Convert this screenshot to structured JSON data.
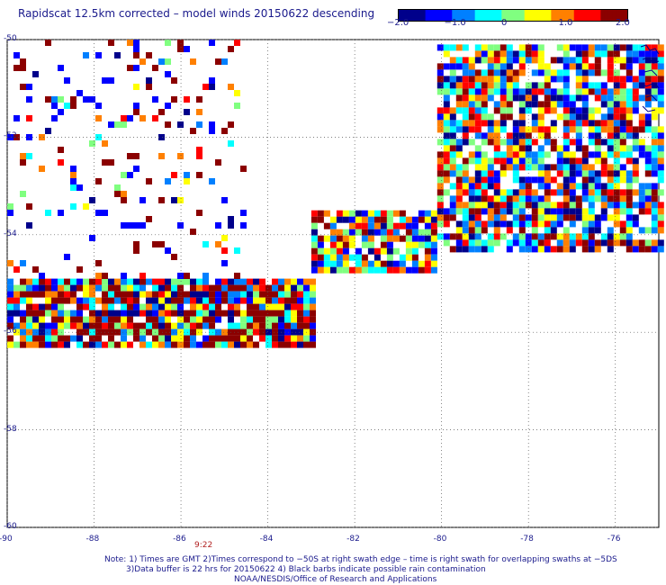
{
  "title": "Rapidscat 12.5km corrected – model winds 20150622 descending",
  "colorbar": {
    "min": -2.0,
    "max": 2.0,
    "ticks": [
      {
        "value": -2.0,
        "label": "−2.0"
      },
      {
        "value": -1.0,
        "label": "−1.0"
      },
      {
        "value": 0,
        "label": "0"
      },
      {
        "value": 1.0,
        "label": "1.0"
      },
      {
        "value": 2.0,
        "label": "2.0"
      }
    ],
    "colors": [
      "#00008b",
      "#0000ff",
      "#0080ff",
      "#00ffff",
      "#80ff80",
      "#ffff00",
      "#ff8000",
      "#ff0000",
      "#8b0000"
    ]
  },
  "map": {
    "lon_range": [
      -90,
      -75
    ],
    "lat_range": [
      -60,
      -50
    ],
    "lat_ticks": [
      {
        "value": -50,
        "label": "-50"
      },
      {
        "value": -52,
        "label": "-52"
      },
      {
        "value": -54,
        "label": "-54"
      },
      {
        "value": -56,
        "label": "-56"
      },
      {
        "value": -58,
        "label": "-58"
      },
      {
        "value": -60,
        "label": "-60"
      }
    ],
    "lon_ticks": [
      {
        "value": -90,
        "label": "-90"
      },
      {
        "value": -88,
        "label": "-88"
      },
      {
        "value": -86,
        "label": "-86"
      },
      {
        "value": -84,
        "label": "-84"
      },
      {
        "value": -82,
        "label": "-82"
      },
      {
        "value": -80,
        "label": "-80"
      },
      {
        "value": -78,
        "label": "-78"
      },
      {
        "value": -76,
        "label": "-76"
      }
    ],
    "grid": "dotted",
    "coastline_color": "#00008b",
    "swaths": [
      {
        "name": "west-swath",
        "lon": [
          -90.0,
          -83.0
        ],
        "lat": [
          -56.3,
          -54.9
        ],
        "density": 0.92
      },
      {
        "name": "west-scatter",
        "lon": [
          -90.0,
          -84.5
        ],
        "lat": [
          -54.9,
          -50.0
        ],
        "density": 0.12
      },
      {
        "name": "mid-band",
        "lon": [
          -83.0,
          -80.1
        ],
        "lat": [
          -54.7,
          -53.5
        ],
        "density": 0.85
      },
      {
        "name": "east-swath",
        "lon": [
          -80.1,
          -75.0
        ],
        "lat": [
          -54.3,
          -50.1
        ],
        "density": 0.8
      }
    ]
  },
  "time_label": "9:22",
  "notes": [
    "Note: 1) Times are GMT 2)Times correspond to −50S at right swath edge – time is right swath for overlapping swaths at −5DS",
    "3)Data buffer is 22 hrs for 20150622 4) Black barbs indicate possible rain contamination",
    "NOAA/NESDIS/Office of Research and Applications"
  ]
}
